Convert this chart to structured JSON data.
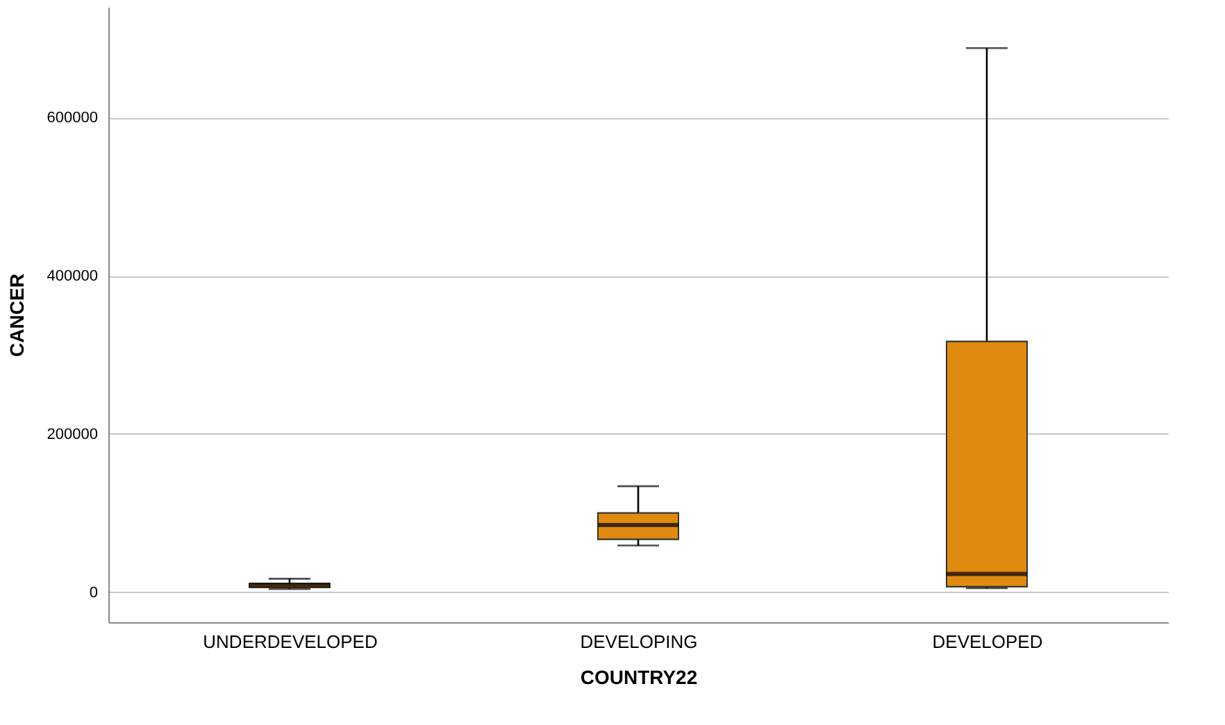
{
  "chart_data": {
    "type": "box",
    "xlabel": "COUNTRY22",
    "ylabel": "CANCER",
    "categories": [
      "UNDERDEVELOPED",
      "DEVELOPING",
      "DEVELOPED"
    ],
    "boxes": [
      {
        "low": 4000,
        "q1": 6000,
        "median": 9000,
        "q3": 11000,
        "high": 17000
      },
      {
        "low": 59000,
        "q1": 67000,
        "median": 85000,
        "q3": 100000,
        "high": 134000
      },
      {
        "low": 5000,
        "q1": 7000,
        "median": 23000,
        "q3": 317000,
        "high": 688000
      }
    ],
    "color": "#e08a10",
    "ylim": [
      -38000,
      740000
    ],
    "yticks": [
      0,
      200000,
      400000,
      600000
    ],
    "grid": "y"
  }
}
